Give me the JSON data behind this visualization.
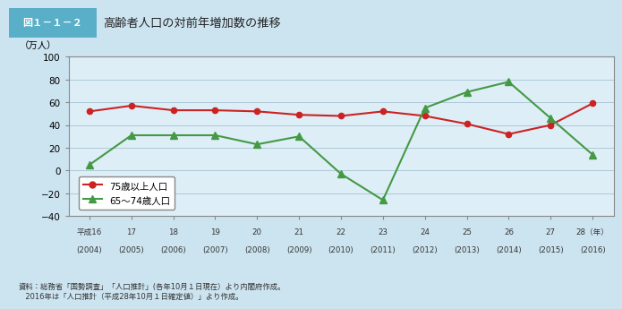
{
  "title": "高齢者人口の対前年増加数の推移",
  "title_label": "図１－１－２",
  "ylabel": "（万人）",
  "years_heisei": [
    "平成16",
    "17",
    "18",
    "19",
    "20",
    "21",
    "22",
    "23",
    "24",
    "25",
    "26",
    "27",
    "28（年）"
  ],
  "years_ad": [
    "(2004)",
    "(2005)",
    "(2006)",
    "(2007)",
    "(2008)",
    "(2009)",
    "(2010)",
    "(2011)",
    "(2012)",
    "(2013)",
    "(2014)",
    "(2015)",
    "(2016)"
  ],
  "x": [
    0,
    1,
    2,
    3,
    4,
    5,
    6,
    7,
    8,
    9,
    10,
    11,
    12
  ],
  "red_line": [
    52,
    57,
    53,
    53,
    52,
    49,
    48,
    52,
    48,
    41,
    32,
    40,
    59
  ],
  "green_line": [
    5,
    31,
    31,
    31,
    23,
    30,
    -3,
    -26,
    55,
    69,
    78,
    46,
    14
  ],
  "red_label": "75歳以上人口",
  "green_label": "65～74歳人口",
  "ylim": [
    -40,
    100
  ],
  "yticks": [
    -40,
    -20,
    0,
    20,
    40,
    60,
    80,
    100
  ],
  "red_color": "#cc2222",
  "green_color": "#449944",
  "bg_color": "#cce4f0",
  "plot_bg": "#ddeef7",
  "grid_color": "#aec8d8",
  "title_box_color": "#5aafc8",
  "footnote1": "資料：総務省「国勢調査」「人口推計」(各年10月１日現在）より内閣府作成。",
  "footnote2": "　2016年は「人口推計（平成28年10月１日確定値）」より作成。"
}
